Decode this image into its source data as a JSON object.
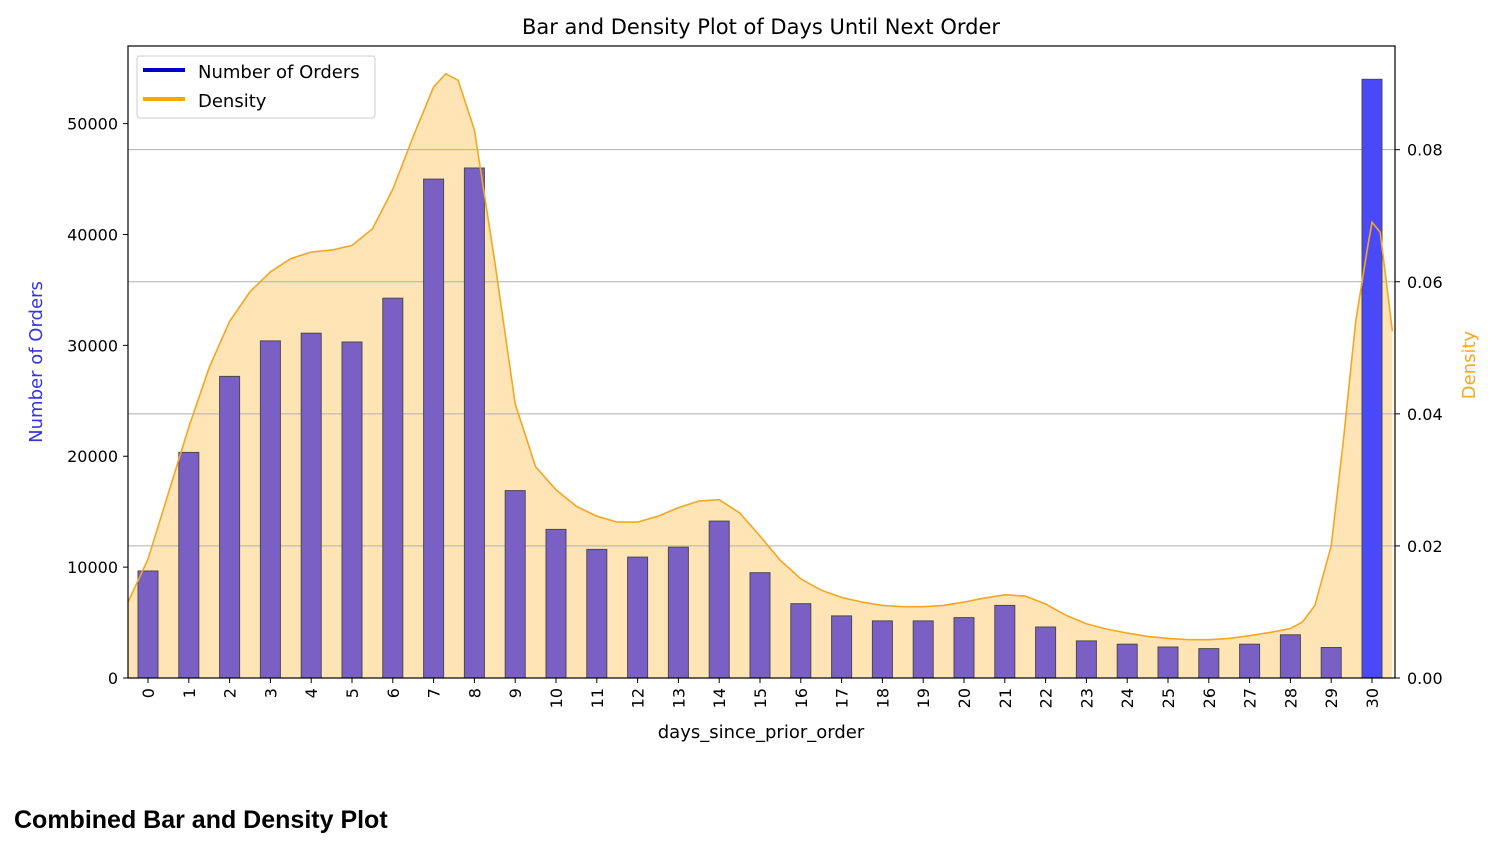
{
  "chart_data": {
    "type": "bar",
    "title": "Bar and Density Plot of Days Until Next Order",
    "xlabel": "days_since_prior_order",
    "ylabel": "Number of Orders",
    "y2label": "Density",
    "categories": [
      "0",
      "1",
      "2",
      "3",
      "4",
      "5",
      "6",
      "7",
      "8",
      "9",
      "10",
      "11",
      "12",
      "13",
      "14",
      "15",
      "16",
      "17",
      "18",
      "19",
      "20",
      "21",
      "22",
      "23",
      "24",
      "25",
      "26",
      "27",
      "28",
      "29",
      "30"
    ],
    "series": [
      {
        "name": "Number of Orders",
        "type": "bar",
        "axis": "left",
        "values": [
          9650,
          20350,
          27200,
          30400,
          31100,
          30300,
          34250,
          45000,
          46000,
          16900,
          13400,
          11600,
          10900,
          11800,
          14150,
          9500,
          6700,
          5600,
          5150,
          5150,
          5450,
          6550,
          4600,
          3350,
          3050,
          2800,
          2650,
          3050,
          3900,
          2750,
          54000
        ]
      },
      {
        "name": "Density",
        "type": "area",
        "axis": "right",
        "x": [
          -0.5,
          0,
          0.5,
          1,
          1.5,
          2,
          2.5,
          3,
          3.5,
          4,
          4.5,
          5,
          5.5,
          6,
          6.5,
          7,
          7.3,
          7.6,
          8,
          8.5,
          9,
          9.5,
          10,
          10.5,
          11,
          11.5,
          12,
          12.5,
          13,
          13.5,
          14,
          14.5,
          15,
          15.5,
          16,
          16.5,
          17,
          17.5,
          18,
          18.5,
          19,
          19.5,
          20,
          20.5,
          21,
          21.5,
          22,
          22.5,
          23,
          23.5,
          24,
          24.5,
          25,
          25.5,
          26,
          26.5,
          27,
          27.5,
          28,
          28.3,
          28.6,
          29,
          29.3,
          29.6,
          29.9,
          30,
          30.2,
          30.5
        ],
        "values": [
          0.0115,
          0.018,
          0.028,
          0.038,
          0.047,
          0.054,
          0.0585,
          0.0615,
          0.0635,
          0.0645,
          0.0648,
          0.0655,
          0.068,
          0.074,
          0.082,
          0.0895,
          0.0915,
          0.0905,
          0.083,
          0.063,
          0.0415,
          0.032,
          0.0285,
          0.026,
          0.0245,
          0.0236,
          0.0236,
          0.0245,
          0.0258,
          0.0268,
          0.027,
          0.025,
          0.0215,
          0.0178,
          0.015,
          0.0133,
          0.0122,
          0.0115,
          0.011,
          0.0108,
          0.0108,
          0.011,
          0.0115,
          0.0121,
          0.0126,
          0.0124,
          0.0112,
          0.0095,
          0.0082,
          0.0074,
          0.0068,
          0.0063,
          0.006,
          0.0058,
          0.0058,
          0.006,
          0.0064,
          0.0069,
          0.0075,
          0.0085,
          0.011,
          0.02,
          0.036,
          0.054,
          0.0655,
          0.069,
          0.0675,
          0.0525
        ]
      }
    ],
    "ylim": [
      0,
      57000
    ],
    "y2lim": [
      0,
      0.0957
    ],
    "yticks": [
      "0",
      "10000",
      "20000",
      "30000",
      "40000",
      "50000"
    ],
    "y2ticks": [
      "0.00",
      "0.02",
      "0.04",
      "0.06",
      "0.08"
    ],
    "grid": "horizontal lines at right-axis ticks",
    "legend": "top-left",
    "colors": {
      "bar_fill": "#7a60c4",
      "bar_last_fill": "#4949f7",
      "bar_edge": "#4a4a4a",
      "density_line": "#f5a623",
      "density_fill": "#ffe4b5",
      "legend_orders": "#0000cc",
      "legend_density": "#ffa500",
      "ylabel_color": "#3535e0",
      "y2label_color": "#f5a623",
      "grid": "#b0b0b0"
    }
  },
  "caption": "Combined Bar and Density Plot"
}
